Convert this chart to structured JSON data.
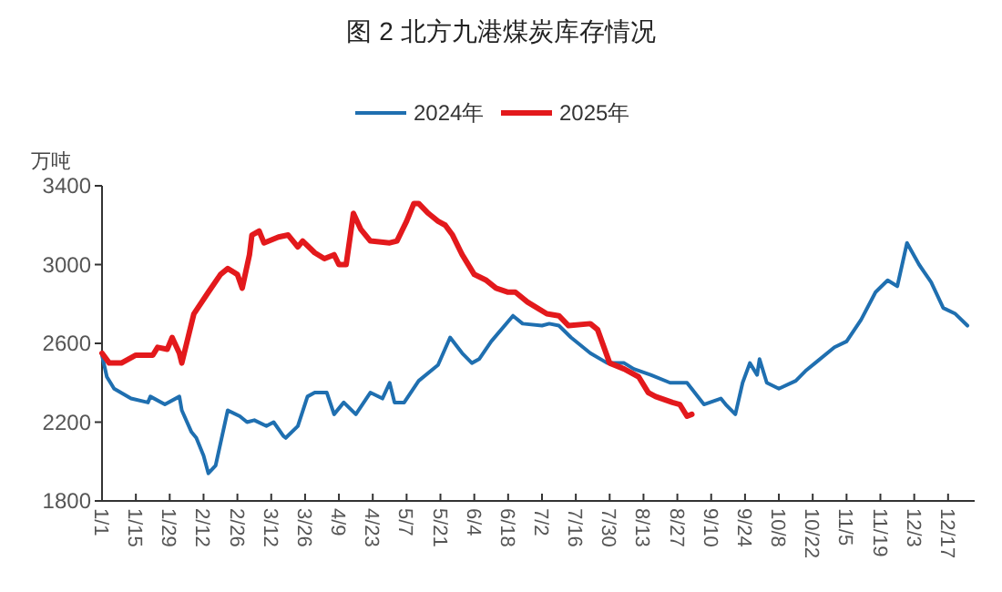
{
  "chart_data": {
    "type": "line",
    "title": "图 2  北方九港煤炭库存情况",
    "ylabel": "万吨",
    "legend": "top",
    "grid": false,
    "marker": "none",
    "line_style": "solid",
    "ylim": [
      1800,
      3400
    ],
    "yticks": [
      1800,
      2200,
      2600,
      3000,
      3400
    ],
    "xlim": [
      "--01-01",
      "--12-28"
    ],
    "xticks": [
      {
        "value": "--01-01",
        "label": "1/1"
      },
      {
        "value": "--01-15",
        "label": "1/15"
      },
      {
        "value": "--01-29",
        "label": "1/29"
      },
      {
        "value": "--02-12",
        "label": "2/12"
      },
      {
        "value": "--02-26",
        "label": "2/26"
      },
      {
        "value": "--03-12",
        "label": "3/12"
      },
      {
        "value": "--03-26",
        "label": "3/26"
      },
      {
        "value": "--04-09",
        "label": "4/9"
      },
      {
        "value": "--04-23",
        "label": "4/23"
      },
      {
        "value": "--05-07",
        "label": "5/7"
      },
      {
        "value": "--05-21",
        "label": "5/21"
      },
      {
        "value": "--06-04",
        "label": "6/4"
      },
      {
        "value": "--06-18",
        "label": "6/18"
      },
      {
        "value": "--07-02",
        "label": "7/2"
      },
      {
        "value": "--07-16",
        "label": "7/16"
      },
      {
        "value": "--07-30",
        "label": "7/30"
      },
      {
        "value": "--08-13",
        "label": "8/13"
      },
      {
        "value": "--08-27",
        "label": "8/27"
      },
      {
        "value": "--09-10",
        "label": "9/10"
      },
      {
        "value": "--09-24",
        "label": "9/24"
      },
      {
        "value": "--10-08",
        "label": "10/8"
      },
      {
        "value": "--10-22",
        "label": "10/22"
      },
      {
        "value": "--11-05",
        "label": "11/5"
      },
      {
        "value": "--11-19",
        "label": "11/19"
      },
      {
        "value": "--12-03",
        "label": "12/3"
      },
      {
        "value": "--12-17",
        "label": "12/17"
      }
    ],
    "series": [
      {
        "name": "2024年",
        "color": "#1f6fb0",
        "x": [
          "--01-01",
          "--01-03",
          "--01-06",
          "--01-13",
          "--01-20",
          "--01-21",
          "--01-27",
          "--02-02",
          "--02-03",
          "--02-07",
          "--02-09",
          "--02-12",
          "--02-14",
          "--02-17",
          "--02-22",
          "--02-27",
          "--03-02",
          "--03-05",
          "--03-10",
          "--03-13",
          "--03-17",
          "--03-18",
          "--03-23",
          "--03-27",
          "--03-30",
          "--04-04",
          "--04-07",
          "--04-11",
          "--04-16",
          "--04-22",
          "--04-27",
          "--04-30",
          "--05-02",
          "--05-06",
          "--05-12",
          "--05-20",
          "--05-25",
          "--05-30",
          "--06-03",
          "--06-06",
          "--06-11",
          "--06-20",
          "--06-24",
          "--07-02",
          "--07-05",
          "--07-09",
          "--07-14",
          "--07-22",
          "--07-29",
          "--08-05",
          "--08-09",
          "--08-16",
          "--08-24",
          "--08-31",
          "--09-07",
          "--09-14",
          "--09-16",
          "--09-20",
          "--09-23",
          "--09-26",
          "--09-29",
          "--09-30",
          "--10-03",
          "--10-08",
          "--10-15",
          "--10-19",
          "--10-23",
          "--10-31",
          "--11-05",
          "--11-11",
          "--11-17",
          "--11-22",
          "--11-26",
          "--11-30",
          "--12-05",
          "--12-10",
          "--12-15",
          "--12-20",
          "--12-25"
        ],
        "values": [
          2540,
          2430,
          2370,
          2320,
          2300,
          2330,
          2290,
          2330,
          2260,
          2150,
          2120,
          2030,
          1940,
          1980,
          2260,
          2230,
          2200,
          2210,
          2180,
          2200,
          2130,
          2120,
          2180,
          2330,
          2350,
          2350,
          2240,
          2300,
          2240,
          2350,
          2320,
          2400,
          2300,
          2300,
          2410,
          2490,
          2630,
          2550,
          2500,
          2520,
          2610,
          2740,
          2700,
          2690,
          2700,
          2690,
          2630,
          2550,
          2500,
          2500,
          2470,
          2440,
          2400,
          2400,
          2290,
          2320,
          2290,
          2240,
          2400,
          2500,
          2440,
          2520,
          2400,
          2370,
          2410,
          2460,
          2500,
          2580,
          2610,
          2720,
          2860,
          2920,
          2890,
          3110,
          3000,
          2910,
          2780,
          2750,
          2690
        ]
      },
      {
        "name": "2025年",
        "color": "#e3191c",
        "x": [
          "--01-01",
          "--01-04",
          "--01-09",
          "--01-15",
          "--01-22",
          "--01-24",
          "--01-28",
          "--01-30",
          "--02-02",
          "--02-03",
          "--02-08",
          "--02-14",
          "--02-19",
          "--02-22",
          "--02-26",
          "--02-28",
          "--03-03",
          "--03-04",
          "--03-07",
          "--03-09",
          "--03-15",
          "--03-19",
          "--03-23",
          "--03-25",
          "--03-30",
          "--04-03",
          "--04-07",
          "--04-09",
          "--04-12",
          "--04-15",
          "--04-18",
          "--04-22",
          "--04-30",
          "--05-03",
          "--05-07",
          "--05-10",
          "--05-12",
          "--05-16",
          "--05-20",
          "--05-23",
          "--05-26",
          "--05-30",
          "--06-04",
          "--06-09",
          "--06-13",
          "--06-18",
          "--06-21",
          "--06-26",
          "--07-04",
          "--07-09",
          "--07-13",
          "--07-22",
          "--07-25",
          "--07-30",
          "--08-05",
          "--08-11",
          "--08-15",
          "--08-18",
          "--08-25",
          "--08-28",
          "--08-31",
          "--09-02"
        ],
        "values": [
          2550,
          2500,
          2500,
          2540,
          2540,
          2580,
          2570,
          2630,
          2550,
          2500,
          2750,
          2860,
          2950,
          2980,
          2950,
          2880,
          3050,
          3150,
          3170,
          3110,
          3140,
          3150,
          3090,
          3120,
          3060,
          3030,
          3050,
          3000,
          3000,
          3260,
          3180,
          3120,
          3110,
          3120,
          3220,
          3310,
          3310,
          3260,
          3220,
          3200,
          3150,
          3050,
          2950,
          2920,
          2880,
          2860,
          2860,
          2810,
          2750,
          2740,
          2690,
          2700,
          2670,
          2500,
          2470,
          2430,
          2350,
          2330,
          2300,
          2290,
          2230,
          2240
        ]
      }
    ]
  }
}
